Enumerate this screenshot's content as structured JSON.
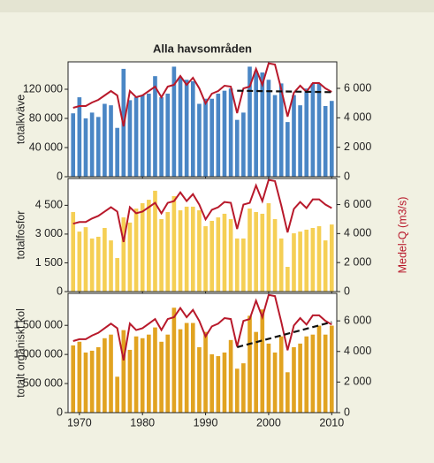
{
  "chart_data": [
    {
      "type": "bar",
      "title": "Alla havsområden",
      "ylabel": "totalkväve",
      "x": [
        1969,
        1970,
        1971,
        1972,
        1973,
        1974,
        1975,
        1976,
        1977,
        1978,
        1979,
        1980,
        1981,
        1982,
        1983,
        1984,
        1985,
        1986,
        1987,
        1988,
        1989,
        1990,
        1991,
        1992,
        1993,
        1994,
        1995,
        1996,
        1997,
        1998,
        1999,
        2000,
        2001,
        2002,
        2003,
        2004,
        2005,
        2006,
        2007,
        2008,
        2009,
        2010
      ],
      "xlim": [
        1968.2,
        2010.8
      ],
      "ylim": [
        0,
        157600
      ],
      "yticks": [
        0,
        {
          "value": 40000,
          "label": "40 000"
        },
        {
          "value": 80000,
          "label": "80 000"
        },
        {
          "value": 120000,
          "label": "120 000"
        }
      ],
      "y2lim": [
        0,
        7800
      ],
      "y2ticks": [
        0,
        {
          "value": 2000,
          "label": "2 000"
        },
        {
          "value": 4000,
          "label": "4 000"
        },
        {
          "value": 6000,
          "label": "6 000"
        }
      ],
      "series": [
        {
          "color": "#4a86c5",
          "values": [
            87000,
            109000,
            80000,
            88000,
            82000,
            100000,
            98000,
            67000,
            148000,
            105000,
            109000,
            112000,
            114000,
            138000,
            109000,
            114000,
            151000,
            136000,
            133000,
            131000,
            100000,
            107000,
            107000,
            114000,
            118000,
            121000,
            78000,
            88000,
            151000,
            145000,
            143000,
            133000,
            112000,
            128000,
            75000,
            112000,
            98000,
            121000,
            128000,
            128000,
            97000,
            104000
          ]
        },
        {
          "color": "#b8192b",
          "axis": "y2",
          "values": [
            4680,
            4800,
            4800,
            5040,
            5220,
            5520,
            5820,
            5520,
            3420,
            5820,
            5400,
            5520,
            5820,
            6120,
            5400,
            6120,
            6240,
            6840,
            6240,
            6720,
            6000,
            4980,
            5640,
            5820,
            6180,
            6120,
            4320,
            6000,
            6120,
            7320,
            6240,
            7700,
            7620,
            5940,
            4080,
            5700,
            6180,
            5760,
            6360,
            6360,
            6000,
            5760
          ]
        }
      ],
      "trend": {
        "color": "#111111",
        "x": [
          1995,
          2010
        ],
        "values": [
          118000,
          116000
        ]
      }
    },
    {
      "type": "bar",
      "ylabel": "totalfosfor",
      "y2label": "Medel-Q (m3/s)",
      "x": [
        1969,
        1970,
        1971,
        1972,
        1973,
        1974,
        1975,
        1976,
        1977,
        1978,
        1979,
        1980,
        1981,
        1982,
        1983,
        1984,
        1985,
        1986,
        1987,
        1988,
        1989,
        1990,
        1991,
        1992,
        1993,
        1994,
        1995,
        1996,
        1997,
        1998,
        1999,
        2000,
        2001,
        2002,
        2003,
        2004,
        2005,
        2006,
        2007,
        2008,
        2009,
        2010
      ],
      "xlim": [
        1968.2,
        2010.8
      ],
      "ylim": [
        0,
        5900
      ],
      "yticks": [
        0,
        {
          "value": 1500,
          "label": "1 500"
        },
        {
          "value": 3000,
          "label": "3 000"
        },
        {
          "value": 4500,
          "label": "4 500"
        }
      ],
      "y2lim": [
        0,
        7800
      ],
      "y2ticks": [
        0,
        {
          "value": 2000,
          "label": "2 000"
        },
        {
          "value": 4000,
          "label": "4 000"
        },
        {
          "value": 6000,
          "label": "6 000"
        }
      ],
      "series": [
        {
          "color": "#f5cf55",
          "values": [
            4150,
            3130,
            3360,
            2770,
            2860,
            3320,
            2670,
            1750,
            3870,
            3600,
            4330,
            4610,
            4790,
            5260,
            3780,
            4150,
            4980,
            4240,
            4430,
            4430,
            4240,
            3410,
            3690,
            3870,
            4060,
            3780,
            2770,
            2770,
            4330,
            4150,
            4060,
            4610,
            3780,
            2770,
            1290,
            3040,
            3130,
            3230,
            3320,
            3410,
            2670,
            3500
          ]
        },
        {
          "color": "#b8192b",
          "axis": "y2",
          "values": [
            4680,
            4800,
            4800,
            5040,
            5220,
            5520,
            5820,
            5520,
            3420,
            5820,
            5400,
            5520,
            5820,
            6120,
            5400,
            6120,
            6240,
            6840,
            6240,
            6720,
            6000,
            4980,
            5640,
            5820,
            6180,
            6120,
            4320,
            6000,
            6120,
            7320,
            6240,
            7700,
            7620,
            5940,
            4080,
            5700,
            6180,
            5760,
            6360,
            6360,
            6000,
            5760
          ]
        }
      ]
    },
    {
      "type": "bar",
      "ylabel": "totalt organiskt kol",
      "x": [
        1969,
        1970,
        1971,
        1972,
        1973,
        1974,
        1975,
        1976,
        1977,
        1978,
        1979,
        1980,
        1981,
        1982,
        1983,
        1984,
        1985,
        1986,
        1987,
        1988,
        1989,
        1990,
        1991,
        1992,
        1993,
        1994,
        1995,
        1996,
        1997,
        1998,
        1999,
        2000,
        2001,
        2002,
        2003,
        2004,
        2005,
        2006,
        2007,
        2008,
        2009,
        2010
      ],
      "xlim": [
        1968.2,
        2010.8
      ],
      "xticks": [
        1970,
        1980,
        1990,
        2000,
        2010
      ],
      "ylim": [
        0,
        2050000
      ],
      "yticks": [
        0,
        {
          "value": 500000,
          "label": "500 000"
        },
        {
          "value": 1000000,
          "label": "1 000 000"
        },
        {
          "value": 1500000,
          "label": "1 500 000"
        }
      ],
      "y2lim": [
        0,
        7800
      ],
      "y2ticks": [
        0,
        {
          "value": 2000,
          "label": "2 000"
        },
        {
          "value": 4000,
          "label": "4 000"
        },
        {
          "value": 6000,
          "label": "6 000"
        }
      ],
      "series": [
        {
          "color": "#e1a321",
          "values": [
            1156000,
            1218000,
            1033000,
            1064000,
            1125000,
            1279000,
            1341000,
            617000,
            1418000,
            1079000,
            1310000,
            1279000,
            1341000,
            1464000,
            1218000,
            1341000,
            1803000,
            1433000,
            1541000,
            1541000,
            1125000,
            1387000,
            1002000,
            971000,
            1033000,
            1248000,
            755000,
            848000,
            1665000,
            1387000,
            1773000,
            1187000,
            1033000,
            1310000,
            694000,
            1125000,
            1187000,
            1310000,
            1341000,
            1495000,
            1341000,
            1495000
          ]
        },
        {
          "color": "#b8192b",
          "axis": "y2",
          "values": [
            4680,
            4800,
            4800,
            5040,
            5220,
            5520,
            5820,
            5520,
            3420,
            5820,
            5400,
            5520,
            5820,
            6120,
            5400,
            6120,
            6240,
            6840,
            6240,
            6720,
            6000,
            4980,
            5640,
            5820,
            6180,
            6120,
            4320,
            6000,
            6120,
            7320,
            6240,
            7700,
            7620,
            5940,
            4080,
            5700,
            6180,
            5760,
            6360,
            6360,
            6000,
            5760
          ]
        }
      ],
      "trend": {
        "color": "#111111",
        "x": [
          1995,
          2010
        ],
        "values": [
          1125000,
          1557000
        ]
      }
    }
  ]
}
